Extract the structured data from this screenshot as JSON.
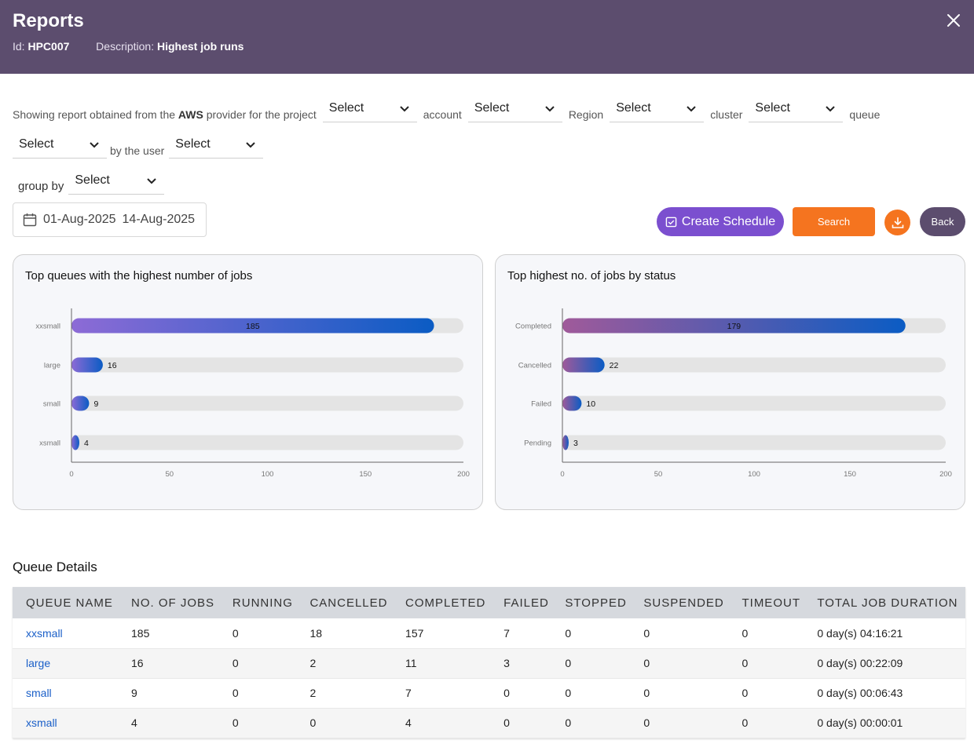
{
  "header": {
    "title": "Reports",
    "id_label": "Id:",
    "id_value": "HPC007",
    "desc_label": "Description:",
    "desc_value": "Highest job runs"
  },
  "filters": {
    "intro_prefix": "Showing report obtained from the",
    "provider": "AWS",
    "intro_suffix": "provider for the project",
    "project_select": "Select",
    "account_label": "account",
    "account_select": "Select",
    "region_label": "Region",
    "region_select": "Select",
    "cluster_label": "cluster",
    "cluster_select": "Select",
    "queue_label": "queue",
    "queue_select": "Select",
    "user_label": "by the user",
    "user_select": "Select",
    "groupby_label": "group by",
    "groupby_select": "Select"
  },
  "date_range": {
    "start": "01-Aug-2025",
    "end": "14-Aug-2025"
  },
  "actions": {
    "create_schedule": "Create Schedule",
    "search": "Search",
    "back": "Back"
  },
  "colors": {
    "header_bg": "#5c4d6e",
    "accent_purple": "#7b4fcf",
    "accent_orange": "#f5741f",
    "bar_start": "#8d6bd6",
    "bar_end": "#0b5cc4",
    "link": "#1a5fc8"
  },
  "chart_data": [
    {
      "type": "bar",
      "orientation": "horizontal",
      "title": "Top queues with the highest number of jobs",
      "categories": [
        "xxsmall",
        "large",
        "small",
        "xsmall"
      ],
      "values": [
        185,
        16,
        9,
        4
      ],
      "xlim": [
        0,
        200
      ],
      "xticks": [
        0,
        50,
        100,
        150,
        200
      ]
    },
    {
      "type": "bar",
      "orientation": "horizontal",
      "title": "Top highest no. of jobs by status",
      "categories": [
        "Completed",
        "Cancelled",
        "Failed",
        "Pending"
      ],
      "values": [
        179,
        22,
        10,
        3
      ],
      "xlim": [
        0,
        200
      ],
      "xticks": [
        0,
        50,
        100,
        150,
        200
      ]
    }
  ],
  "queue_details": {
    "title": "Queue Details",
    "columns": [
      "QUEUE NAME",
      "NO. OF JOBS",
      "RUNNING",
      "CANCELLED",
      "COMPLETED",
      "FAILED",
      "STOPPED",
      "SUSPENDED",
      "TIMEOUT",
      "TOTAL JOB DURATION"
    ],
    "rows": [
      [
        "xxsmall",
        "185",
        "0",
        "18",
        "157",
        "7",
        "0",
        "0",
        "0",
        "0 day(s) 04:16:21"
      ],
      [
        "large",
        "16",
        "0",
        "2",
        "11",
        "3",
        "0",
        "0",
        "0",
        "0 day(s) 00:22:09"
      ],
      [
        "small",
        "9",
        "0",
        "2",
        "7",
        "0",
        "0",
        "0",
        "0",
        "0 day(s) 00:06:43"
      ],
      [
        "xsmall",
        "4",
        "0",
        "0",
        "4",
        "0",
        "0",
        "0",
        "0",
        "0 day(s) 00:00:01"
      ]
    ]
  }
}
